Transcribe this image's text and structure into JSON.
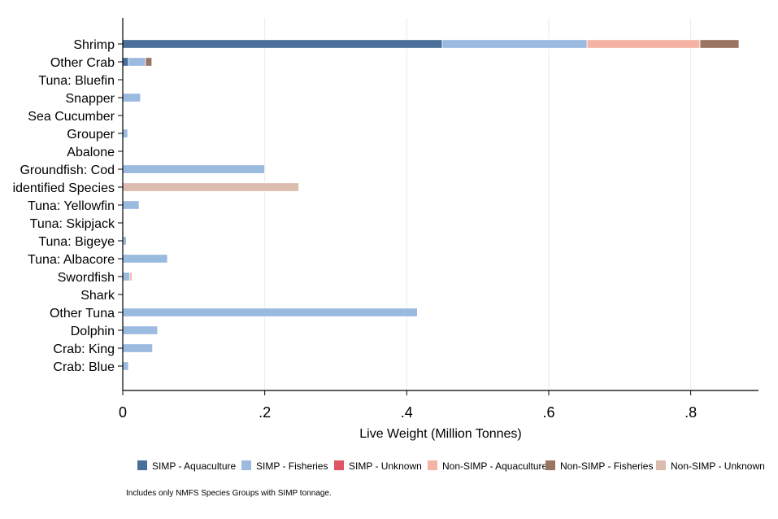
{
  "chart_data": {
    "type": "bar",
    "orientation": "horizontal",
    "stacked": true,
    "title": "",
    "xlabel": "Live Weight (Million Tonnes)",
    "ylabel": "",
    "xlim": [
      0,
      0.9
    ],
    "xticks": [
      {
        "value": 0,
        "label": "0"
      },
      {
        "value": 0.2,
        "label": ".2"
      },
      {
        "value": 0.4,
        "label": ".4"
      },
      {
        "value": 0.6,
        "label": ".6"
      },
      {
        "value": 0.8,
        "label": ".8"
      }
    ],
    "grid": true,
    "legend_position": "bottom",
    "categories": [
      "Shrimp",
      "Other Crab",
      "Tuna: Bluefin",
      "Snapper",
      "Sea Cucumber",
      "Grouper",
      "Abalone",
      "Groundfish: Cod",
      "identified Species",
      "Tuna: Yellowfin",
      "Tuna: Skipjack",
      "Tuna: Bigeye",
      "Tuna: Albacore",
      "Swordfish",
      "Shark",
      "Other Tuna",
      "Dolphin",
      "Crab: King",
      "Crab: Blue"
    ],
    "series": [
      {
        "name": "SIMP - Aquaculture",
        "color": "#4a6f9a",
        "values": [
          0.45,
          0.008,
          0,
          0,
          0,
          0,
          0,
          0,
          0,
          0,
          0,
          0,
          0,
          0,
          0,
          0,
          0,
          0,
          0
        ]
      },
      {
        "name": "SIMP - Fisheries",
        "color": "#9bbadf",
        "values": [
          0.204,
          0.024,
          0,
          0.025,
          0,
          0.007,
          0,
          0.2,
          0,
          0.023,
          0,
          0.005,
          0.063,
          0.01,
          0,
          0.415,
          0.049,
          0.042,
          0.008
        ]
      },
      {
        "name": "SIMP - Unknown",
        "color": "#e05562",
        "values": [
          0,
          0,
          0,
          0,
          0,
          0,
          0,
          0,
          0,
          0,
          0,
          0,
          0,
          0,
          0,
          0,
          0,
          0,
          0
        ]
      },
      {
        "name": "Non-SIMP - Aquaculture",
        "color": "#f5b3a6",
        "values": [
          0.159,
          0,
          0,
          0,
          0,
          0,
          0,
          0,
          0,
          0,
          0,
          0,
          0,
          0.003,
          0,
          0,
          0,
          0,
          0
        ]
      },
      {
        "name": "Non-SIMP - Fisheries",
        "color": "#9b7563",
        "values": [
          0.055,
          0.009,
          0,
          0,
          0,
          0,
          0,
          0,
          0,
          0,
          0,
          0,
          0,
          0,
          0,
          0,
          0,
          0,
          0
        ]
      },
      {
        "name": "Non-SIMP - Unknown",
        "color": "#dcbcae",
        "values": [
          0,
          0,
          0,
          0,
          0,
          0,
          0,
          0,
          0.248,
          0,
          0,
          0,
          0,
          0,
          0,
          0,
          0,
          0,
          0
        ]
      }
    ],
    "note": "Includes only NMFS Species Groups with SIMP tonnage."
  }
}
